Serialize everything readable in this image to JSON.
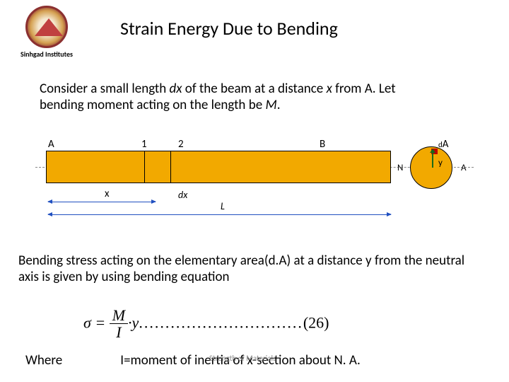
{
  "logo": {
    "institute_name": "Sinhgad Institutes"
  },
  "title": "Strain Energy Due to Bending",
  "paragraph1_parts": {
    "p1": "Consider a small length ",
    "dx": "dx",
    "p2": " of the beam at a distance ",
    "x": "x",
    "p3": " from A. Let bending moment acting on the length be ",
    "M": "M",
    "p4": "."
  },
  "diagram": {
    "beam_color": "#f2a900",
    "labels": {
      "A": "A",
      "one": "1",
      "two": "2",
      "B": "B",
      "x": "x",
      "dx": "dx",
      "L": "L",
      "dA_prefix": "d",
      "dA_main": "A",
      "y": "y",
      "N": "N",
      "A_right": "A"
    },
    "dim_color": "#2050c0",
    "y_arrow_color": "#1a6b1a",
    "dA_mark_color": "#c00000"
  },
  "paragraph2": "Bending stress acting on the elementary area(d.A) at a distance y from the neutral axis is given by using bending equation",
  "equation": {
    "sigma": "σ",
    "eq": " = ",
    "num": "M",
    "den": "I",
    "dot_y": "·y",
    "dots": "...............................",
    "eqnum": "(26)"
  },
  "where": {
    "label": "Where",
    "text": "I=moment of inertia of x-section about N. A."
  },
  "footer": "Strength of Materials"
}
